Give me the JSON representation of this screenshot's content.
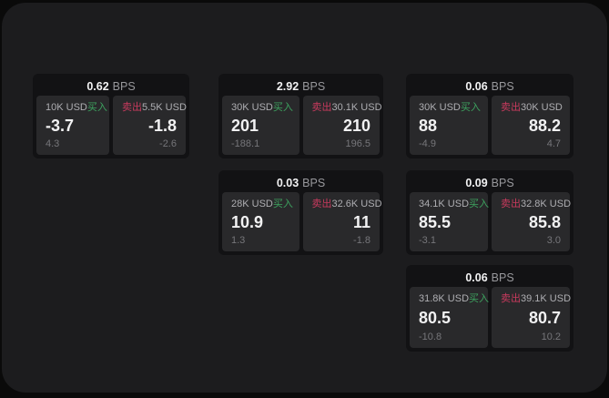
{
  "labels": {
    "buy": "买入",
    "sell": "卖出",
    "bps_unit": "BPS"
  },
  "colors": {
    "background": "#0a0a0a",
    "panel": "#1c1c1e",
    "card": "#121214",
    "tile": "#29292b",
    "text_primary": "#f2f2f3",
    "text_secondary": "#aeaeb2",
    "text_dim": "#76767a",
    "text_bps": "#98989c",
    "buy_green": "#3da35f",
    "sell_red": "#c93a5e"
  },
  "cards": [
    {
      "bps": "0.62",
      "buy": {
        "amount": "10K USD",
        "value": "-3.7",
        "sub": "4.3"
      },
      "sell": {
        "amount": "5.5K USD",
        "value": "-1.8",
        "sub": "-2.6"
      }
    },
    {
      "bps": "2.92",
      "buy": {
        "amount": "30K USD",
        "value": "201",
        "sub": "-188.1"
      },
      "sell": {
        "amount": "30.1K USD",
        "value": "210",
        "sub": "196.5"
      }
    },
    {
      "bps": "0.06",
      "buy": {
        "amount": "30K USD",
        "value": "88",
        "sub": "-4.9"
      },
      "sell": {
        "amount": "30K USD",
        "value": "88.2",
        "sub": "4.7"
      }
    },
    {
      "bps": "0.03",
      "buy": {
        "amount": "28K USD",
        "value": "10.9",
        "sub": "1.3"
      },
      "sell": {
        "amount": "32.6K USD",
        "value": "11",
        "sub": "-1.8"
      }
    },
    {
      "bps": "0.09",
      "buy": {
        "amount": "34.1K USD",
        "value": "85.5",
        "sub": "-3.1"
      },
      "sell": {
        "amount": "32.8K USD",
        "value": "85.8",
        "sub": "3.0"
      }
    },
    {
      "bps": "0.06",
      "buy": {
        "amount": "31.8K USD",
        "value": "80.5",
        "sub": "-10.8"
      },
      "sell": {
        "amount": "39.1K USD",
        "value": "80.7",
        "sub": "10.2"
      }
    }
  ]
}
